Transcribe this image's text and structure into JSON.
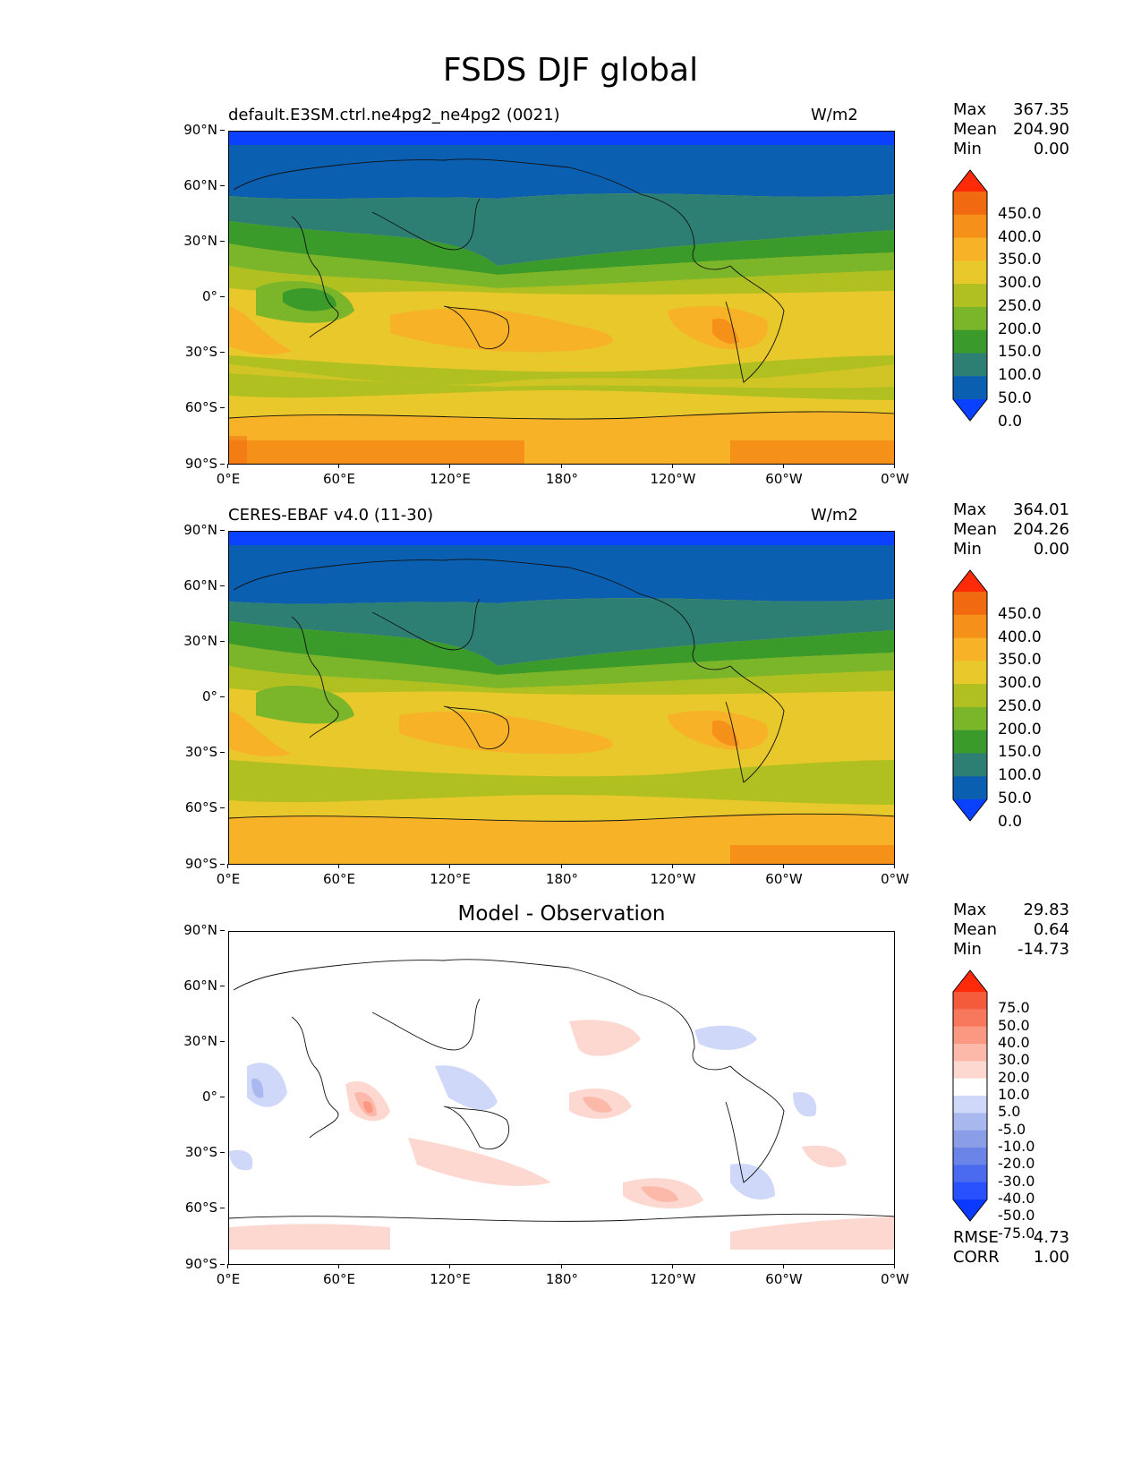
{
  "figure_title": "FSDS DJF global",
  "lat_ticks": [
    "90°N",
    "60°N",
    "30°N",
    "0°",
    "30°S",
    "60°S",
    "90°S"
  ],
  "lon_ticks": [
    "0°E",
    "60°E",
    "120°E",
    "180°",
    "120°W",
    "60°W",
    "0°W"
  ],
  "panels": [
    {
      "title_left": "default.E3SM.ctrl.ne4pg2_ne4pg2 (0021)",
      "title_right": "W/m2",
      "stats": {
        "max_label": "Max",
        "max": "367.35",
        "mean_label": "Mean",
        "mean": "204.90",
        "min_label": "Min",
        "min": "0.00"
      },
      "colorbar_labels": [
        "450.0",
        "400.0",
        "350.0",
        "300.0",
        "250.0",
        "200.0",
        "150.0",
        "100.0",
        "50.0",
        "0.0"
      ]
    },
    {
      "title_left": "CERES-EBAF v4.0 (11-30)",
      "title_right": "W/m2",
      "stats": {
        "max_label": "Max",
        "max": "364.01",
        "mean_label": "Mean",
        "mean": "204.26",
        "min_label": "Min",
        "min": "0.00"
      },
      "colorbar_labels": [
        "450.0",
        "400.0",
        "350.0",
        "300.0",
        "250.0",
        "200.0",
        "150.0",
        "100.0",
        "50.0",
        "0.0"
      ]
    },
    {
      "title_center": "Model - Observation",
      "stats": {
        "max_label": "Max",
        "max": "29.83",
        "mean_label": "Mean",
        "mean": "0.64",
        "min_label": "Min",
        "min": "-14.73"
      },
      "colorbar_labels": [
        "75.0",
        "50.0",
        "40.0",
        "30.0",
        "20.0",
        "10.0",
        "5.0",
        "-5.0",
        "-10.0",
        "-20.0",
        "-30.0",
        "-40.0",
        "-50.0",
        "-75.0"
      ],
      "rmse_label": "RMSE",
      "rmse": "4.73",
      "corr_label": "CORR",
      "corr": "1.00"
    }
  ],
  "colors": {
    "abs_scale": [
      "#0a40ff",
      "#0a5fb0",
      "#2e7f73",
      "#3a9a2a",
      "#7ab52a",
      "#b0c020",
      "#e8c82a",
      "#f7b228",
      "#f59018",
      "#f26a10",
      "#ff2a08"
    ],
    "diff_scale": [
      "#0a3aff",
      "#2850ff",
      "#4a6af0",
      "#6a84e8",
      "#8a9ee8",
      "#aab8f0",
      "#cfd8f8",
      "#ffffff",
      "#fdd8d0",
      "#fcb8a8",
      "#fb9882",
      "#f8785e",
      "#f45a3c",
      "#ff2a08"
    ]
  }
}
